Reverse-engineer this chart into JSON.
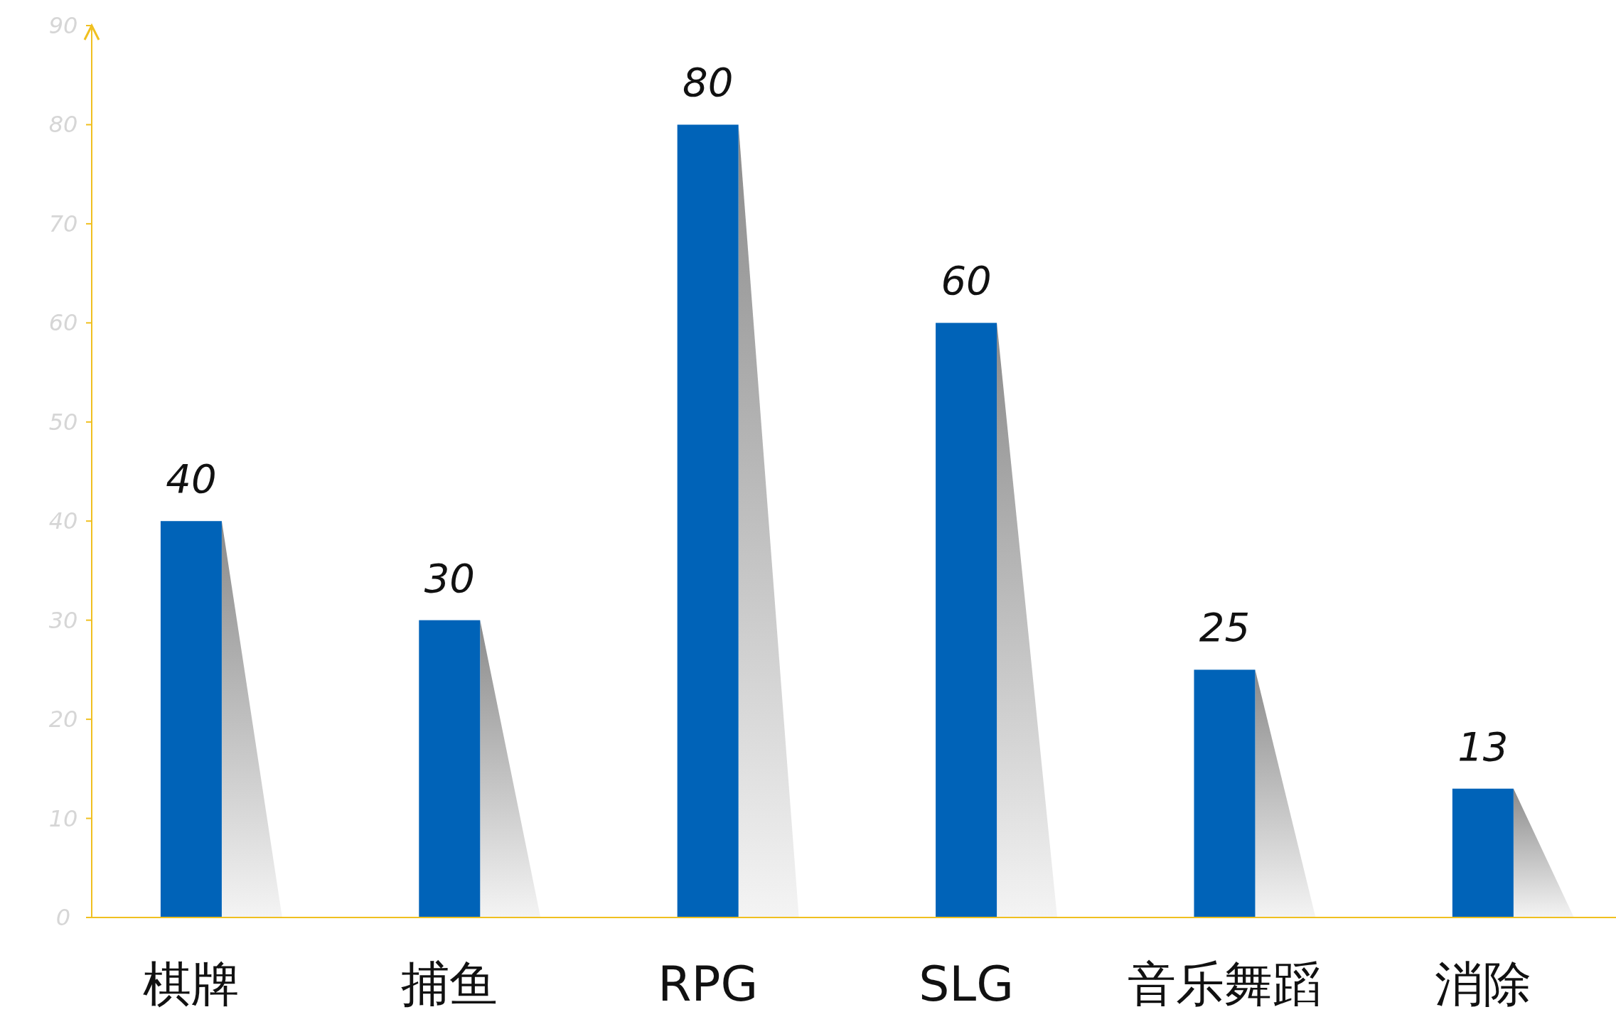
{
  "chart_data": {
    "type": "bar",
    "categories": [
      "棋牌",
      "捕鱼",
      "RPG",
      "SLG",
      "音乐舞蹈",
      "消除"
    ],
    "values": [
      40,
      30,
      80,
      60,
      25,
      13
    ],
    "color": "#0063b8",
    "ylim": [
      0,
      90
    ],
    "yticks": [
      0,
      10,
      20,
      30,
      40,
      50,
      60,
      70,
      80,
      90
    ],
    "grid": false,
    "data_labels": true
  }
}
